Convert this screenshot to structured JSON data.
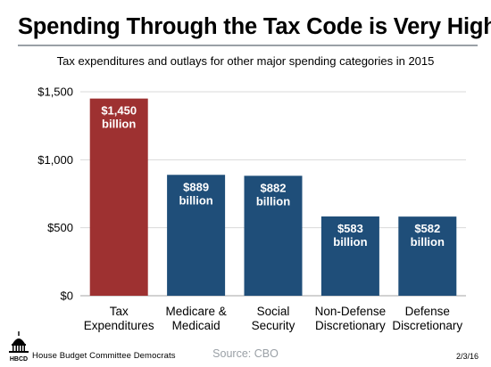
{
  "header": {
    "title": "Spending Through the Tax Code is Very High",
    "subtitle": "Tax expenditures and outlays for other major spending categories in 2015"
  },
  "footer": {
    "organization": "House Budget Committee Democrats",
    "source": "Source: CBO",
    "date": "2/3/16",
    "logo_text": "HBCD"
  },
  "colors": {
    "highlight": "#9e3131",
    "bars": "#1f4e79",
    "grid": "#d9d9d9"
  },
  "chart_data": {
    "type": "bar",
    "title": "",
    "xlabel": "",
    "ylabel": "",
    "ylim": [
      0,
      1500
    ],
    "yticks": [
      0,
      500,
      1000,
      1500
    ],
    "ytick_labels": [
      "$0",
      "$500",
      "$1,000",
      "$1,500"
    ],
    "grid": true,
    "categories": [
      [
        "Tax",
        "Expenditures"
      ],
      [
        "Medicare &",
        "Medicaid"
      ],
      [
        "Social",
        "Security"
      ],
      [
        "Non-Defense",
        "Discretionary"
      ],
      [
        "Defense",
        "Discretionary"
      ]
    ],
    "values": [
      1450,
      889,
      882,
      583,
      582
    ],
    "data_labels": [
      [
        "$1,450",
        "billion"
      ],
      [
        "$889",
        "billion"
      ],
      [
        "$882",
        "billion"
      ],
      [
        "$583",
        "billion"
      ],
      [
        "$582",
        "billion"
      ]
    ],
    "bar_colors": [
      "#9e3131",
      "#1f4e79",
      "#1f4e79",
      "#1f4e79",
      "#1f4e79"
    ]
  }
}
